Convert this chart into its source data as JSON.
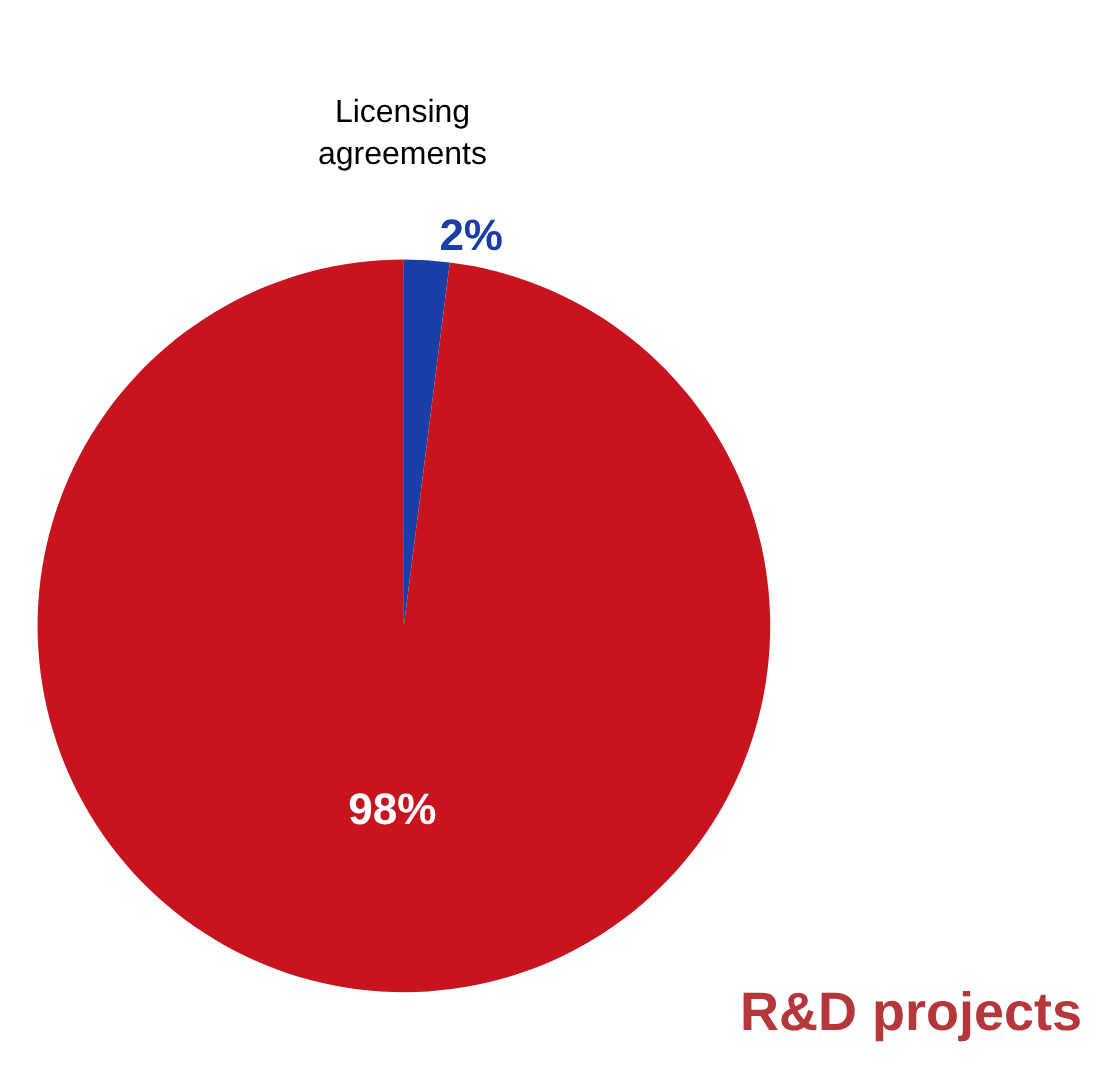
{
  "chart_data": {
    "type": "pie",
    "categories": [
      "Licensing agreements",
      "R&D projects"
    ],
    "values": [
      2,
      98
    ],
    "value_labels": [
      "2%",
      "98%"
    ],
    "colors": [
      "#1a3ea6",
      "#c8141f"
    ],
    "legend": false
  }
}
